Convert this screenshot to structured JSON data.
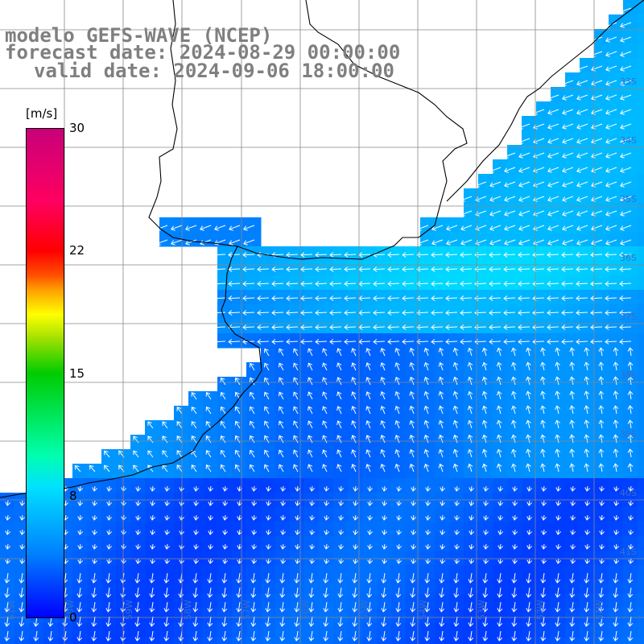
{
  "title": {
    "line1": "modelo GEFS-WAVE (NCEP)",
    "line2": "forecast date: 2024-08-29 00:00:00",
    "line3": "valid date: 2024-09-06 18:00:00"
  },
  "colorbar": {
    "unit": "[m/s]",
    "ticks": [
      "30",
      "22",
      "15",
      "8",
      "0"
    ],
    "colors": [
      "#0000ff",
      "#0080ff",
      "#00e0ff",
      "#00cc00",
      "#ffff00",
      "#ff0000",
      "#c8007a"
    ]
  },
  "grid": {
    "lat_labels": [
      "33S",
      "34S",
      "35S",
      "36S",
      "37S",
      "38S",
      "39S",
      "40S",
      "41S"
    ],
    "lon_labels": [
      "61W",
      "60W",
      "59W",
      "58W",
      "57W",
      "56W",
      "55W",
      "54W",
      "53W",
      "52W",
      "51W"
    ]
  },
  "legend_colors": {
    "sea_low": "#0046ff",
    "sea_high": "#00e6ff",
    "arrow": "#ffffff",
    "coast": "#000000"
  }
}
